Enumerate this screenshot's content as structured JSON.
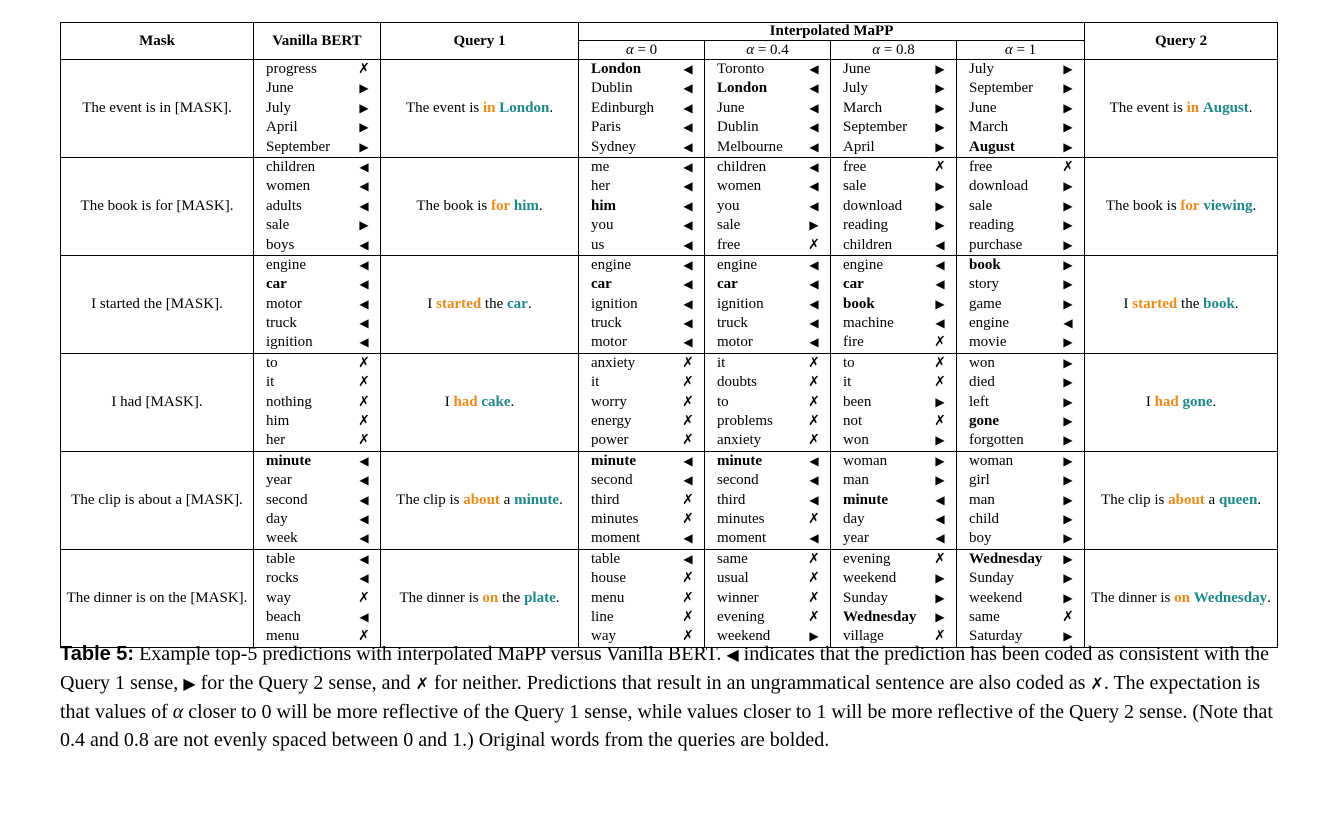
{
  "headers": {
    "mask": "Mask",
    "vanilla": "Vanilla BERT",
    "query1": "Query 1",
    "interp": "Interpolated MaPP",
    "query2": "Query 2",
    "alphas": [
      "= 0",
      "= 0.4",
      "= 0.8",
      "= 1"
    ]
  },
  "symbols": {
    "q1": "◀",
    "q2": "▶",
    "neither": "✗",
    "alpha": "α"
  },
  "rows": [
    {
      "mask": "The event is in [MASK].",
      "q1": [
        "The event is ",
        "in",
        " ",
        "London",
        "."
      ],
      "q2": [
        "The event is ",
        "in",
        " ",
        "August",
        "."
      ],
      "preds": [
        [
          [
            "progress",
            "x",
            false
          ],
          [
            "June",
            "r",
            false
          ],
          [
            "July",
            "r",
            false
          ],
          [
            "April",
            "r",
            false
          ],
          [
            "September",
            "r",
            false
          ]
        ],
        [
          [
            "London",
            "l",
            true
          ],
          [
            "Dublin",
            "l",
            false
          ],
          [
            "Edinburgh",
            "l",
            false
          ],
          [
            "Paris",
            "l",
            false
          ],
          [
            "Sydney",
            "l",
            false
          ]
        ],
        [
          [
            "Toronto",
            "l",
            false
          ],
          [
            "London",
            "l",
            true
          ],
          [
            "June",
            "l",
            false
          ],
          [
            "Dublin",
            "l",
            false
          ],
          [
            "Melbourne",
            "l",
            false
          ]
        ],
        [
          [
            "June",
            "r",
            false
          ],
          [
            "July",
            "r",
            false
          ],
          [
            "March",
            "r",
            false
          ],
          [
            "September",
            "r",
            false
          ],
          [
            "April",
            "r",
            false
          ]
        ],
        [
          [
            "July",
            "r",
            false
          ],
          [
            "September",
            "r",
            false
          ],
          [
            "June",
            "r",
            false
          ],
          [
            "March",
            "r",
            false
          ],
          [
            "August",
            "r",
            true
          ]
        ]
      ]
    },
    {
      "mask": "The book is for [MASK].",
      "q1": [
        "The book is ",
        "for",
        " ",
        "him",
        "."
      ],
      "q2": [
        "The book is ",
        "for",
        " ",
        "viewing",
        "."
      ],
      "preds": [
        [
          [
            "children",
            "l",
            false
          ],
          [
            "women",
            "l",
            false
          ],
          [
            "adults",
            "l",
            false
          ],
          [
            "sale",
            "r",
            false
          ],
          [
            "boys",
            "l",
            false
          ]
        ],
        [
          [
            "me",
            "l",
            false
          ],
          [
            "her",
            "l",
            false
          ],
          [
            "him",
            "l",
            true
          ],
          [
            "you",
            "l",
            false
          ],
          [
            "us",
            "l",
            false
          ]
        ],
        [
          [
            "children",
            "l",
            false
          ],
          [
            "women",
            "l",
            false
          ],
          [
            "you",
            "l",
            false
          ],
          [
            "sale",
            "r",
            false
          ],
          [
            "free",
            "x",
            false
          ]
        ],
        [
          [
            "free",
            "x",
            false
          ],
          [
            "sale",
            "r",
            false
          ],
          [
            "download",
            "r",
            false
          ],
          [
            "reading",
            "r",
            false
          ],
          [
            "children",
            "l",
            false
          ]
        ],
        [
          [
            "free",
            "x",
            false
          ],
          [
            "download",
            "r",
            false
          ],
          [
            "sale",
            "r",
            false
          ],
          [
            "reading",
            "r",
            false
          ],
          [
            "purchase",
            "r",
            false
          ]
        ]
      ]
    },
    {
      "mask": "I started the [MASK].",
      "q1": [
        "I ",
        "started",
        " the ",
        "car",
        "."
      ],
      "q2": [
        "I ",
        "started",
        " the ",
        "book",
        "."
      ],
      "preds": [
        [
          [
            "engine",
            "l",
            false
          ],
          [
            "car",
            "l",
            true
          ],
          [
            "motor",
            "l",
            false
          ],
          [
            "truck",
            "l",
            false
          ],
          [
            "ignition",
            "l",
            false
          ]
        ],
        [
          [
            "engine",
            "l",
            false
          ],
          [
            "car",
            "l",
            true
          ],
          [
            "ignition",
            "l",
            false
          ],
          [
            "truck",
            "l",
            false
          ],
          [
            "motor",
            "l",
            false
          ]
        ],
        [
          [
            "engine",
            "l",
            false
          ],
          [
            "car",
            "l",
            true
          ],
          [
            "ignition",
            "l",
            false
          ],
          [
            "truck",
            "l",
            false
          ],
          [
            "motor",
            "l",
            false
          ]
        ],
        [
          [
            "engine",
            "l",
            false
          ],
          [
            "car",
            "l",
            true
          ],
          [
            "book",
            "r",
            true
          ],
          [
            "machine",
            "l",
            false
          ],
          [
            "fire",
            "x",
            false
          ]
        ],
        [
          [
            "book",
            "r",
            true
          ],
          [
            "story",
            "r",
            false
          ],
          [
            "game",
            "r",
            false
          ],
          [
            "engine",
            "l",
            false
          ],
          [
            "movie",
            "r",
            false
          ]
        ]
      ]
    },
    {
      "mask": "I had [MASK].",
      "q1": [
        "I ",
        "had",
        " ",
        "cake",
        "."
      ],
      "q2": [
        "I ",
        "had",
        " ",
        "gone",
        "."
      ],
      "preds": [
        [
          [
            "to",
            "x",
            false
          ],
          [
            "it",
            "x",
            false
          ],
          [
            "nothing",
            "x",
            false
          ],
          [
            "him",
            "x",
            false
          ],
          [
            "her",
            "x",
            false
          ]
        ],
        [
          [
            "anxiety",
            "x",
            false
          ],
          [
            "it",
            "x",
            false
          ],
          [
            "worry",
            "x",
            false
          ],
          [
            "energy",
            "x",
            false
          ],
          [
            "power",
            "x",
            false
          ]
        ],
        [
          [
            "it",
            "x",
            false
          ],
          [
            "doubts",
            "x",
            false
          ],
          [
            "to",
            "x",
            false
          ],
          [
            "problems",
            "x",
            false
          ],
          [
            "anxiety",
            "x",
            false
          ]
        ],
        [
          [
            "to",
            "x",
            false
          ],
          [
            "it",
            "x",
            false
          ],
          [
            "been",
            "r",
            false
          ],
          [
            "not",
            "x",
            false
          ],
          [
            "won",
            "r",
            false
          ]
        ],
        [
          [
            "won",
            "r",
            false
          ],
          [
            "died",
            "r",
            false
          ],
          [
            "left",
            "r",
            false
          ],
          [
            "gone",
            "r",
            true
          ],
          [
            "forgotten",
            "r",
            false
          ]
        ]
      ]
    },
    {
      "mask": "The clip is about a [MASK].",
      "q1": [
        "The clip is ",
        "about",
        " a ",
        "minute",
        "."
      ],
      "q2": [
        "The clip is ",
        "about",
        " a ",
        "queen",
        "."
      ],
      "preds": [
        [
          [
            "minute",
            "l",
            true
          ],
          [
            "year",
            "l",
            false
          ],
          [
            "second",
            "l",
            false
          ],
          [
            "day",
            "l",
            false
          ],
          [
            "week",
            "l",
            false
          ]
        ],
        [
          [
            "minute",
            "l",
            true
          ],
          [
            "second",
            "l",
            false
          ],
          [
            "third",
            "x",
            false
          ],
          [
            "minutes",
            "x",
            false
          ],
          [
            "moment",
            "l",
            false
          ]
        ],
        [
          [
            "minute",
            "l",
            true
          ],
          [
            "second",
            "l",
            false
          ],
          [
            "third",
            "l",
            false
          ],
          [
            "minutes",
            "x",
            false
          ],
          [
            "moment",
            "l",
            false
          ]
        ],
        [
          [
            "woman",
            "r",
            false
          ],
          [
            "man",
            "r",
            false
          ],
          [
            "minute",
            "l",
            true
          ],
          [
            "day",
            "l",
            false
          ],
          [
            "year",
            "l",
            false
          ]
        ],
        [
          [
            "woman",
            "r",
            false
          ],
          [
            "girl",
            "r",
            false
          ],
          [
            "man",
            "r",
            false
          ],
          [
            "child",
            "r",
            false
          ],
          [
            "boy",
            "r",
            false
          ]
        ]
      ]
    },
    {
      "mask": "The dinner is on the [MASK].",
      "q1": [
        "The dinner is ",
        "on",
        " the ",
        "plate",
        "."
      ],
      "q2": [
        "The dinner is ",
        "on",
        "",
        "Wednesday",
        "."
      ],
      "preds": [
        [
          [
            "table",
            "l",
            false
          ],
          [
            "rocks",
            "l",
            false
          ],
          [
            "way",
            "x",
            false
          ],
          [
            "beach",
            "l",
            false
          ],
          [
            "menu",
            "x",
            false
          ]
        ],
        [
          [
            "table",
            "l",
            false
          ],
          [
            "house",
            "x",
            false
          ],
          [
            "menu",
            "x",
            false
          ],
          [
            "line",
            "x",
            false
          ],
          [
            "way",
            "x",
            false
          ]
        ],
        [
          [
            "same",
            "x",
            false
          ],
          [
            "usual",
            "x",
            false
          ],
          [
            "winner",
            "x",
            false
          ],
          [
            "evening",
            "x",
            false
          ],
          [
            "weekend",
            "r",
            false
          ]
        ],
        [
          [
            "evening",
            "x",
            false
          ],
          [
            "weekend",
            "r",
            false
          ],
          [
            "Sunday",
            "r",
            false
          ],
          [
            "Wednesday",
            "r",
            true
          ],
          [
            "village",
            "x",
            false
          ]
        ],
        [
          [
            "Wednesday",
            "r",
            true
          ],
          [
            "Sunday",
            "r",
            false
          ],
          [
            "weekend",
            "r",
            false
          ],
          [
            "same",
            "x",
            false
          ],
          [
            "Saturday",
            "r",
            false
          ]
        ]
      ]
    }
  ],
  "caption": {
    "label": "Table 5:",
    "p1": " Example top-5 predictions with interpolated MaPP versus Vanilla BERT. ",
    "p2": " indicates that the prediction has been coded as consistent with the Query 1 sense, ",
    "p3": " for the Query 2 sense, and ",
    "p4": " for neither. Predictions that result in an ungrammatical sentence are also coded as ",
    "p5": ". The expectation is that values of ",
    "p6": " closer to 0 will be more reflective of the Query 1 sense, while values closer to 1 will be more reflective of the Query 2 sense. (Note that 0.4 and 0.8 are not evenly spaced between 0 and 1.) Original words from the queries are bolded."
  }
}
